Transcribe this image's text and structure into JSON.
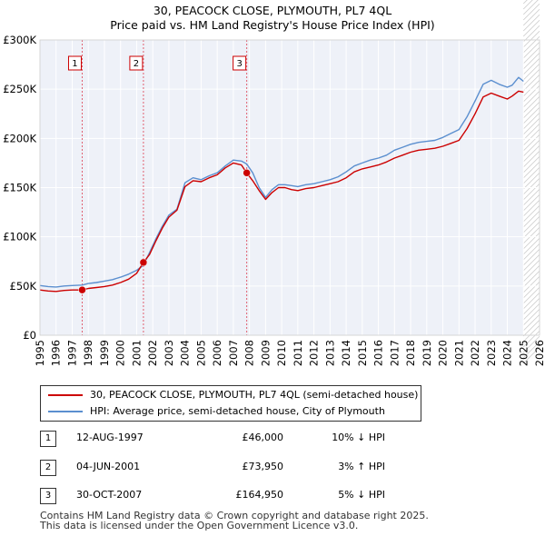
{
  "chart_data": {
    "type": "line",
    "title": "30, PEACOCK CLOSE, PLYMOUTH, PL7 4QL",
    "subtitle": "Price paid vs. HM Land Registry's House Price Index (HPI)",
    "xlabel": "",
    "ylabel": "",
    "xlim": [
      1995,
      2026
    ],
    "ylim": [
      0,
      300000
    ],
    "x_ticks": [
      1995,
      1996,
      1997,
      1998,
      1999,
      2000,
      2001,
      2002,
      2003,
      2004,
      2005,
      2006,
      2007,
      2008,
      2009,
      2010,
      2011,
      2012,
      2013,
      2014,
      2015,
      2016,
      2017,
      2018,
      2019,
      2020,
      2021,
      2022,
      2023,
      2024,
      2025,
      2026
    ],
    "y_ticks": [
      0,
      50000,
      100000,
      150000,
      200000,
      250000,
      300000
    ],
    "y_tick_labels": [
      "£0",
      "£50K",
      "£100K",
      "£150K",
      "£200K",
      "£250K",
      "£300K"
    ],
    "grid": true,
    "shaded_future_from": 2025.0,
    "series": [
      {
        "name": "30, PEACOCK CLOSE, PLYMOUTH, PL7 4QL (semi-detached house)",
        "color": "#cc0000",
        "x": [
          1995.0,
          1995.5,
          1996.0,
          1996.5,
          1997.0,
          1997.62,
          1998.0,
          1998.5,
          1999.0,
          1999.5,
          2000.0,
          2000.5,
          2001.0,
          2001.42,
          2001.8,
          2002.2,
          2002.6,
          2003.0,
          2003.5,
          2004.0,
          2004.5,
          2005.0,
          2005.5,
          2006.0,
          2006.5,
          2007.0,
          2007.5,
          2007.83,
          2008.2,
          2008.6,
          2009.0,
          2009.4,
          2009.8,
          2010.2,
          2010.6,
          2011.0,
          2011.5,
          2012.0,
          2012.5,
          2013.0,
          2013.5,
          2014.0,
          2014.5,
          2015.0,
          2015.5,
          2016.0,
          2016.5,
          2017.0,
          2017.5,
          2018.0,
          2018.5,
          2019.0,
          2019.5,
          2020.0,
          2020.5,
          2021.0,
          2021.5,
          2022.0,
          2022.5,
          2023.0,
          2023.5,
          2024.0,
          2024.3,
          2024.7,
          2025.0
        ],
        "y": [
          46000,
          45000,
          44500,
          45500,
          46000,
          46000,
          47500,
          48500,
          49500,
          51000,
          53500,
          57000,
          63000,
          73950,
          82000,
          96000,
          109000,
          120000,
          127000,
          151000,
          157000,
          156000,
          160000,
          163000,
          170000,
          175000,
          173000,
          164950,
          157000,
          147000,
          138000,
          145000,
          150000,
          150000,
          148000,
          147000,
          149000,
          150000,
          152000,
          154000,
          156000,
          160000,
          166000,
          169000,
          171000,
          173000,
          176000,
          180000,
          183000,
          186000,
          188000,
          189000,
          190000,
          192000,
          195000,
          198000,
          210000,
          225000,
          242000,
          246000,
          243000,
          240000,
          243000,
          248000,
          247000
        ]
      },
      {
        "name": "HPI: Average price, semi-detached house, City of Plymouth",
        "color": "#5b8fcf",
        "x": [
          1995.0,
          1995.5,
          1996.0,
          1996.5,
          1997.0,
          1997.62,
          1998.0,
          1998.5,
          1999.0,
          1999.5,
          2000.0,
          2000.5,
          2001.0,
          2001.42,
          2001.8,
          2002.2,
          2002.6,
          2003.0,
          2003.5,
          2004.0,
          2004.5,
          2005.0,
          2005.5,
          2006.0,
          2006.5,
          2007.0,
          2007.5,
          2007.83,
          2008.2,
          2008.6,
          2009.0,
          2009.4,
          2009.8,
          2010.2,
          2010.6,
          2011.0,
          2011.5,
          2012.0,
          2012.5,
          2013.0,
          2013.5,
          2014.0,
          2014.5,
          2015.0,
          2015.5,
          2016.0,
          2016.5,
          2017.0,
          2017.5,
          2018.0,
          2018.5,
          2019.0,
          2019.5,
          2020.0,
          2020.5,
          2021.0,
          2021.5,
          2022.0,
          2022.5,
          2023.0,
          2023.5,
          2024.0,
          2024.3,
          2024.7,
          2025.0
        ],
        "y": [
          50500,
          49500,
          49000,
          50000,
          50500,
          51000,
          52500,
          53500,
          55000,
          56500,
          59000,
          62000,
          66000,
          71000,
          84000,
          98000,
          111000,
          122000,
          128000,
          155000,
          160000,
          158000,
          162000,
          165000,
          172000,
          178000,
          177000,
          174000,
          165000,
          150000,
          140000,
          148000,
          153000,
          153000,
          152000,
          151000,
          153000,
          154000,
          156000,
          158000,
          161000,
          166000,
          172000,
          175000,
          178000,
          180000,
          183000,
          188000,
          191000,
          194000,
          196000,
          197000,
          198000,
          201000,
          205000,
          209000,
          222000,
          238000,
          255000,
          259000,
          255000,
          252000,
          254000,
          262000,
          258000
        ]
      }
    ],
    "annotations": [
      {
        "label": "1",
        "x": 1997.62,
        "y": 46000
      },
      {
        "label": "2",
        "x": 2001.42,
        "y": 73950
      },
      {
        "label": "3",
        "x": 2007.83,
        "y": 164950
      }
    ]
  },
  "legend": {
    "items": [
      {
        "label": "30, PEACOCK CLOSE, PLYMOUTH, PL7 4QL (semi-detached house)",
        "color": "#cc0000"
      },
      {
        "label": "HPI: Average price, semi-detached house, City of Plymouth",
        "color": "#5b8fcf"
      }
    ]
  },
  "sales": [
    {
      "num": "1",
      "date": "12-AUG-1997",
      "price": "£46,000",
      "hpi": "10% ↓ HPI"
    },
    {
      "num": "2",
      "date": "04-JUN-2001",
      "price": "£73,950",
      "hpi": "3% ↑ HPI"
    },
    {
      "num": "3",
      "date": "30-OCT-2007",
      "price": "£164,950",
      "hpi": "5% ↓ HPI"
    }
  ],
  "footer": {
    "line1": "Contains HM Land Registry data © Crown copyright and database right 2025.",
    "line2": "This data is licensed under the Open Government Licence v3.0."
  }
}
